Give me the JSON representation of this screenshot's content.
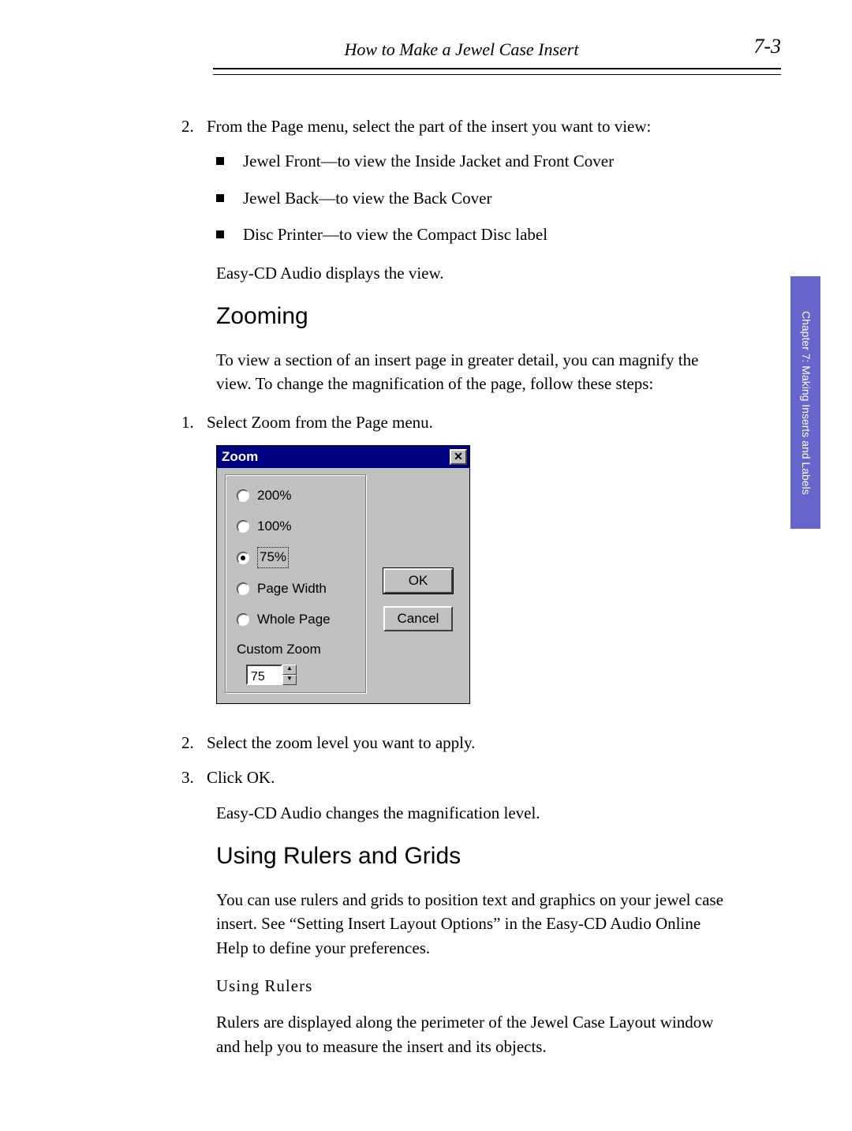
{
  "header": {
    "running_title": "How to Make a Jewel Case Insert",
    "page_number": "7-3"
  },
  "side_tab": "Chapter 7:  Making Inserts\nand Labels",
  "step2": {
    "num": "2.",
    "text": "From the Page menu, select the part of the insert you want to view:"
  },
  "bullets": [
    "Jewel Front—to view the Inside Jacket and Front Cover",
    "Jewel Back—to view the Back Cover",
    "Disc Printer—to view the Compact Disc label"
  ],
  "after_bullets": "Easy-CD Audio displays the view.",
  "zooming": {
    "heading": "Zooming",
    "para": "To view a section of an insert page in greater detail, you can magnify the view. To change the magnification of the page, follow these steps:",
    "step1_num": "1.",
    "step1_text": "Select Zoom from the Page menu.",
    "step2_num": "2.",
    "step2_text": "Select the zoom level you want to apply.",
    "step3_num": "3.",
    "step3_text": "Click OK.",
    "after": "Easy-CD Audio changes the magnification level."
  },
  "dialog": {
    "title": "Zoom",
    "options": {
      "o200": "200%",
      "o100": "100%",
      "o75": "75%",
      "pagewidth": "Page Width",
      "wholepage": "Whole Page"
    },
    "custom_label": "Custom Zoom",
    "custom_value": "75",
    "ok": "OK",
    "cancel": "Cancel"
  },
  "rulers": {
    "heading": "Using Rulers and Grids",
    "para": "You can use rulers and grids to position text and graphics on your jewel case insert. See “Setting Insert Layout Options” in the Easy-CD Audio Online Help to define your preferences.",
    "sub": "Using Rulers",
    "para2": "Rulers are displayed along the perimeter of the Jewel Case Layout window and help you to measure the insert and its objects."
  }
}
